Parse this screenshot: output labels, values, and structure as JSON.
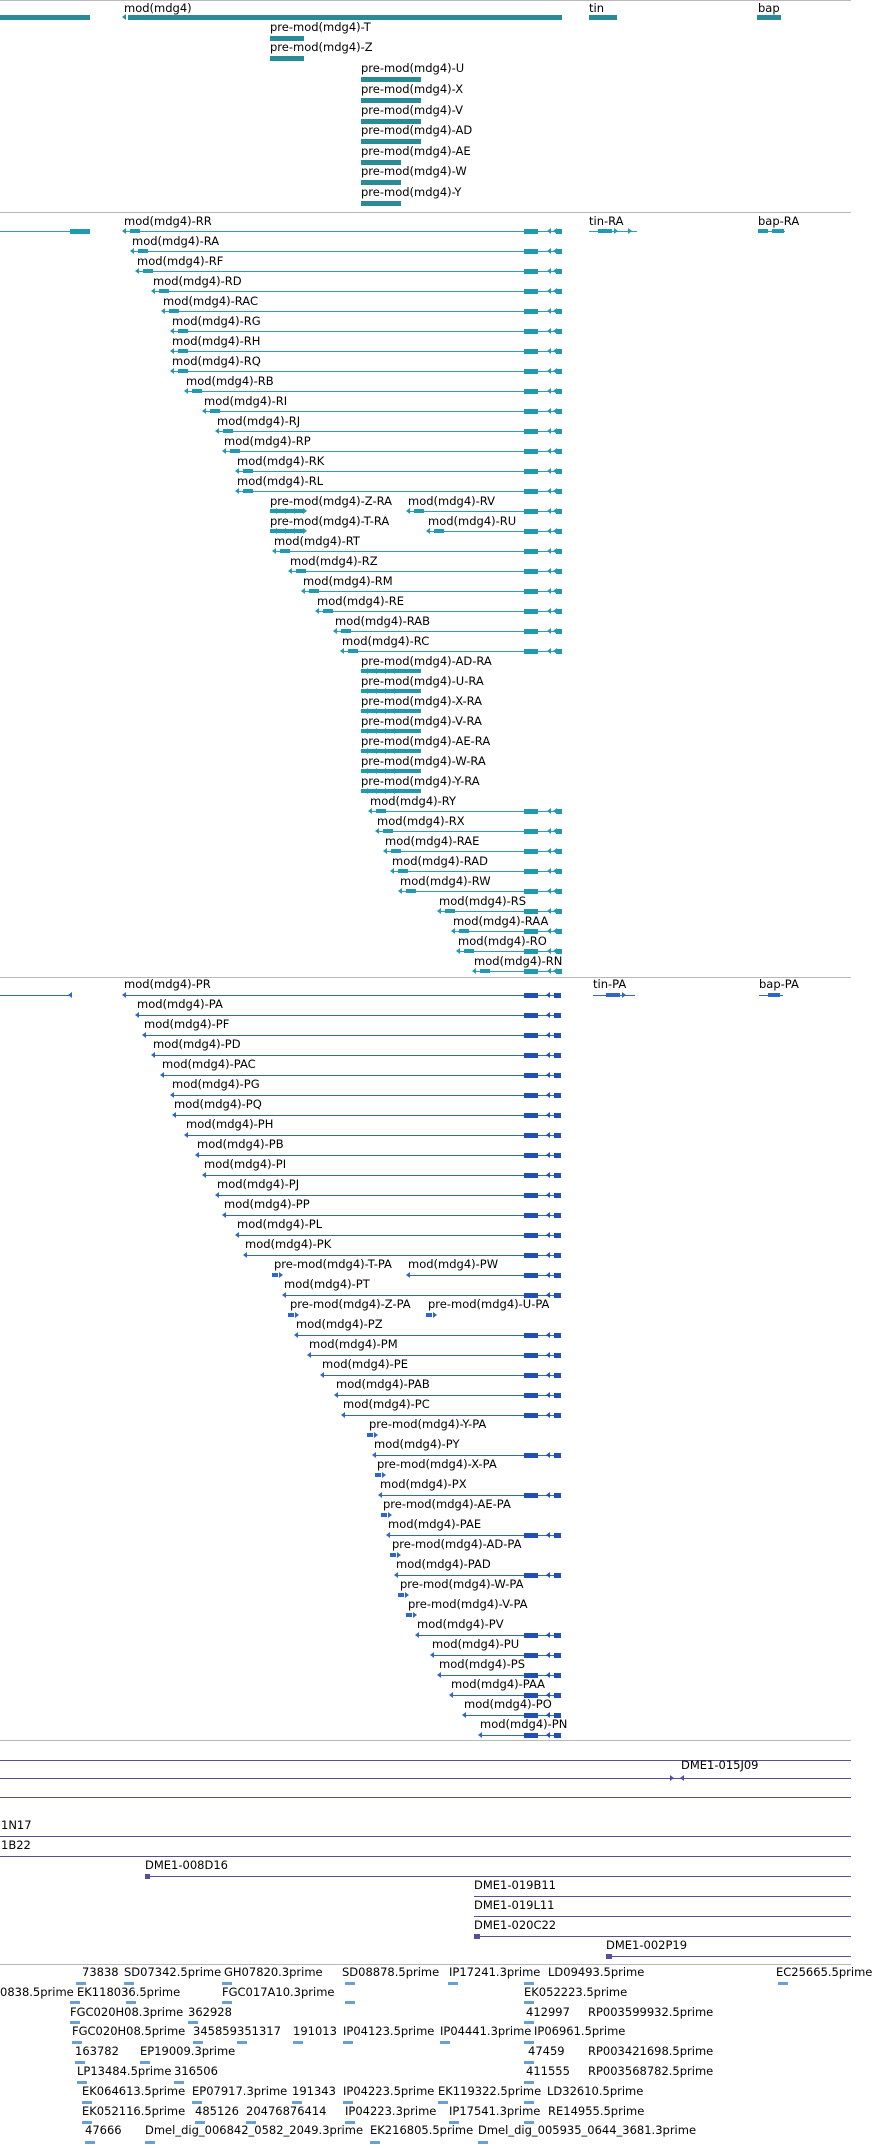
{
  "colors": {
    "gene": "#2a8a96",
    "transcript_rna": "#1f9ab0",
    "transcript_line_rna": "#2f9bc9",
    "protein": "#2f66cc",
    "protein_dark": "#1f4fb7",
    "insertion": "#5b4b9b",
    "est": "#6a9fd6",
    "separator": "#b9b9b9"
  },
  "gene_track": {
    "labels": [
      "mod(mdg4)",
      "tin",
      "bap",
      "pre-mod(mdg4)-T",
      "pre-mod(mdg4)-Z",
      "pre-mod(mdg4)-U",
      "pre-mod(mdg4)-X",
      "pre-mod(mdg4)-V",
      "pre-mod(mdg4)-AD",
      "pre-mod(mdg4)-AE",
      "pre-mod(mdg4)-W",
      "pre-mod(mdg4)-Y"
    ]
  },
  "rna_track": {
    "tin": "tin-RA",
    "bap": "bap-RA",
    "rows": [
      "mod(mdg4)-RR",
      "mod(mdg4)-RA",
      "mod(mdg4)-RF",
      "mod(mdg4)-RD",
      "mod(mdg4)-RAC",
      "mod(mdg4)-RG",
      "mod(mdg4)-RH",
      "mod(mdg4)-RQ",
      "mod(mdg4)-RB",
      "mod(mdg4)-RI",
      "mod(mdg4)-RJ",
      "mod(mdg4)-RP",
      "mod(mdg4)-RK",
      "mod(mdg4)-RL",
      "pre-mod(mdg4)-Z-RA",
      "mod(mdg4)-RV",
      "pre-mod(mdg4)-T-RA",
      "mod(mdg4)-RU",
      "mod(mdg4)-RT",
      "mod(mdg4)-RZ",
      "mod(mdg4)-RM",
      "mod(mdg4)-RE",
      "mod(mdg4)-RAB",
      "mod(mdg4)-RC",
      "pre-mod(mdg4)-AD-RA",
      "pre-mod(mdg4)-U-RA",
      "pre-mod(mdg4)-X-RA",
      "pre-mod(mdg4)-V-RA",
      "pre-mod(mdg4)-AE-RA",
      "pre-mod(mdg4)-W-RA",
      "pre-mod(mdg4)-Y-RA",
      "mod(mdg4)-RY",
      "mod(mdg4)-RX",
      "mod(mdg4)-RAE",
      "mod(mdg4)-RAD",
      "mod(mdg4)-RW",
      "mod(mdg4)-RS",
      "mod(mdg4)-RAA",
      "mod(mdg4)-RO",
      "mod(mdg4)-RN"
    ]
  },
  "protein_track": {
    "tin": "tin-PA",
    "bap": "bap-PA",
    "rows": [
      "mod(mdg4)-PR",
      "mod(mdg4)-PA",
      "mod(mdg4)-PF",
      "mod(mdg4)-PD",
      "mod(mdg4)-PAC",
      "mod(mdg4)-PG",
      "mod(mdg4)-PQ",
      "mod(mdg4)-PH",
      "mod(mdg4)-PB",
      "mod(mdg4)-PI",
      "mod(mdg4)-PJ",
      "mod(mdg4)-PP",
      "mod(mdg4)-PL",
      "mod(mdg4)-PK",
      "pre-mod(mdg4)-T-PA",
      "mod(mdg4)-PW",
      "mod(mdg4)-PT",
      "pre-mod(mdg4)-Z-PA",
      "pre-mod(mdg4)-U-PA",
      "mod(mdg4)-PZ",
      "mod(mdg4)-PM",
      "mod(mdg4)-PE",
      "mod(mdg4)-PAB",
      "mod(mdg4)-PC",
      "pre-mod(mdg4)-Y-PA",
      "mod(mdg4)-PY",
      "pre-mod(mdg4)-X-PA",
      "mod(mdg4)-PX",
      "pre-mod(mdg4)-AE-PA",
      "mod(mdg4)-PAE",
      "pre-mod(mdg4)-AD-PA",
      "mod(mdg4)-PAD",
      "pre-mod(mdg4)-W-PA",
      "pre-mod(mdg4)-V-PA",
      "mod(mdg4)-PV",
      "mod(mdg4)-PU",
      "mod(mdg4)-PS",
      "mod(mdg4)-PAA",
      "mod(mdg4)-PO",
      "mod(mdg4)-PN"
    ]
  },
  "insertion_track": {
    "labels": [
      "DME1-015J09",
      "1N17",
      "1B22",
      "DME1-008D16",
      "DME1-019B11",
      "DME1-019L11",
      "DME1-020C22",
      "DME1-002P19"
    ]
  },
  "est_track": {
    "labels": [
      "73838",
      "SD07342.5prime",
      "GH07820.3prime",
      "SD08878.5prime",
      "IP17241.3prime",
      "LD09493.5prime",
      "EC25665.5prime",
      "0838.5prime",
      "EK118036.5prime",
      "FGC017A10.3prime",
      "EK052223.5prime",
      "FGC020H08.3prime",
      "362928",
      "412997",
      "RP003599932.5prime",
      "FGC020H08.5prime",
      "345859",
      "351317",
      "191013",
      "IP04123.5prime",
      "IP04441.3prime",
      "IP06961.5prime",
      "163782",
      "EP19009.3prime",
      "47459",
      "RP003421698.5prime",
      "LP13484.5prime",
      "316506",
      "411555",
      "RP003568782.5prime",
      "EK064613.5prime",
      "EP07917.3prime",
      "191343",
      "IP04223.5prime",
      "EK119322.5prime",
      "LD32610.5prime",
      "EK052116.5prime",
      "485126",
      "20476876414",
      "IP04223.3prime",
      "IP17541.3prime",
      "RE14955.5prime",
      "47666",
      "Dmel_dig_006842_0582_2049.3prime",
      "EK216805.5prime",
      "Dmel_dig_005935_0644_3681.3prime"
    ]
  }
}
